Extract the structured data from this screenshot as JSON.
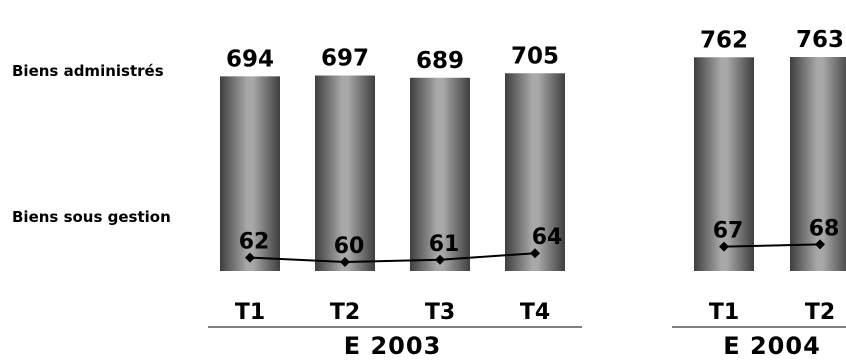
{
  "chart_data": {
    "type": "bar",
    "series_labels": {
      "bars": "Biens administrés",
      "line": "Biens sous gestion"
    },
    "groups": [
      {
        "label": "E 2003",
        "categories": [
          "T1",
          "T2",
          "T3",
          "T4"
        ],
        "bar_values": [
          694,
          697,
          689,
          705
        ],
        "line_values": [
          62,
          60,
          61,
          64
        ]
      },
      {
        "label": "E 2004",
        "categories": [
          "T1",
          "T2"
        ],
        "bar_values": [
          762,
          763
        ],
        "line_values": [
          67,
          68
        ]
      }
    ],
    "grid": false,
    "axes_visible": false
  }
}
